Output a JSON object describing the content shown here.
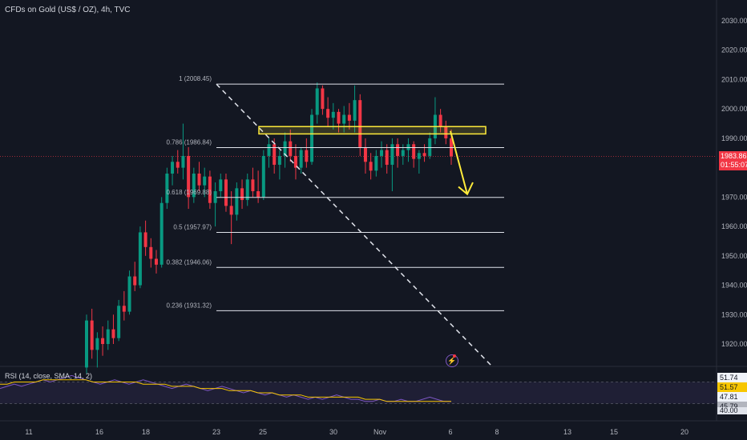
{
  "symbol_title": "CFDs on Gold (US$ / OZ), 4h, TVC",
  "rsi_title": "RSI (14, close, SMA, 14, 2)",
  "current_price": "1983.86",
  "countdown": "01:55:07",
  "rsi_values": [
    "51.74",
    "51.57",
    "47.81",
    "45.79",
    "40.00"
  ],
  "icons": {
    "alert": "lightning-icon"
  },
  "colors": {
    "up": "#089981",
    "down": "#f23645",
    "highlight": "#ffeb3b",
    "rsi_line": "#7e57c2",
    "rsi_ma": "#f7c600"
  },
  "chart_data": [
    {
      "type": "candlestick",
      "y_axis": {
        "min": 1912,
        "max": 2034,
        "ticks": [
          1920,
          1930,
          1940,
          1950,
          1960,
          1970,
          1980,
          1990,
          2000,
          2010,
          2020,
          2030
        ],
        "tick_labels": [
          "1920.00",
          "1930.00",
          "1940.00",
          "1950.00",
          "1960.00",
          "1970.00",
          "1980.00",
          "1990.00",
          "2000.00",
          "2010.00",
          "2020.00",
          "2030.00"
        ]
      },
      "x_axis": {
        "labels": [
          "11",
          "16",
          "18",
          "23",
          "25",
          "30",
          "Nov",
          "6",
          "8",
          "13",
          "15",
          "20"
        ]
      },
      "fib_levels": [
        {
          "label": "1 (2008.45)",
          "value": 2008.45
        },
        {
          "label": "0.786 (1986.84)",
          "value": 1986.84
        },
        {
          "label": "0.618 (1969.88)",
          "value": 1969.88
        },
        {
          "label": "0.5 (1957.97)",
          "value": 1957.97
        },
        {
          "label": "0.382 (1946.06)",
          "value": 1946.06
        },
        {
          "label": "0.236 (1931.32)",
          "value": 1931.32
        }
      ],
      "resistance_zone": {
        "low": 1991.5,
        "high": 1994
      },
      "trendline": "dashed diagonal from 2008 down-right",
      "projection": "yellow arrow pointing down toward 1970",
      "candles": [
        [
          1912,
          1930,
          1910,
          1928
        ],
        [
          1928,
          1932,
          1915,
          1918
        ],
        [
          1918,
          1924,
          1912,
          1922
        ],
        [
          1922,
          1926,
          1916,
          1920
        ],
        [
          1920,
          1928,
          1918,
          1925
        ],
        [
          1925,
          1930,
          1920,
          1922
        ],
        [
          1922,
          1935,
          1921,
          1933
        ],
        [
          1933,
          1938,
          1928,
          1931
        ],
        [
          1931,
          1945,
          1930,
          1943
        ],
        [
          1943,
          1948,
          1938,
          1940
        ],
        [
          1940,
          1960,
          1939,
          1958
        ],
        [
          1958,
          1962,
          1950,
          1953
        ],
        [
          1953,
          1956,
          1946,
          1949
        ],
        [
          1949,
          1952,
          1944,
          1947
        ],
        [
          1947,
          1970,
          1946,
          1968
        ],
        [
          1968,
          1980,
          1966,
          1978
        ],
        [
          1978,
          1984,
          1974,
          1982
        ],
        [
          1982,
          1986,
          1978,
          1980
        ],
        [
          1980,
          1995,
          1976,
          1984
        ],
        [
          1984,
          1987,
          1966,
          1970
        ],
        [
          1970,
          1980,
          1968,
          1978
        ],
        [
          1978,
          1982,
          1972,
          1974
        ],
        [
          1974,
          1980,
          1970,
          1977
        ],
        [
          1977,
          1979,
          1966,
          1968
        ],
        [
          1968,
          1975,
          1960,
          1972
        ],
        [
          1972,
          1978,
          1970,
          1976
        ],
        [
          1976,
          1978,
          1965,
          1967
        ],
        [
          1967,
          1972,
          1954,
          1964
        ],
        [
          1964,
          1975,
          1962,
          1973
        ],
        [
          1973,
          1976,
          1966,
          1969
        ],
        [
          1969,
          1978,
          1967,
          1976
        ],
        [
          1976,
          1980,
          1970,
          1972
        ],
        [
          1972,
          1979,
          1968,
          1970
        ],
        [
          1970,
          1986,
          1969,
          1984
        ],
        [
          1984,
          1990,
          1980,
          1988
        ],
        [
          1988,
          1990,
          1978,
          1981
        ],
        [
          1981,
          1986,
          1976,
          1984
        ],
        [
          1984,
          1992,
          1980,
          1989
        ],
        [
          1989,
          1993,
          1982,
          1984
        ],
        [
          1984,
          1988,
          1976,
          1980
        ],
        [
          1980,
          1987,
          1978,
          1986
        ],
        [
          1986,
          1990,
          1980,
          1982
        ],
        [
          1982,
          2000,
          1981,
          1998
        ],
        [
          1998,
          2009,
          1995,
          2007
        ],
        [
          2007,
          2008,
          1998,
          2000
        ],
        [
          2000,
          2004,
          1994,
          1997
        ],
        [
          1997,
          2002,
          1993,
          1999
        ],
        [
          1999,
          2000,
          1992,
          1995
        ],
        [
          1995,
          2001,
          1992,
          1998
        ],
        [
          1998,
          2002,
          1993,
          1996
        ],
        [
          1996,
          2008,
          1992,
          2003
        ],
        [
          2003,
          2005,
          1984,
          1987
        ],
        [
          1987,
          1990,
          1978,
          1982
        ],
        [
          1982,
          1985,
          1976,
          1979
        ],
        [
          1979,
          1986,
          1977,
          1984
        ],
        [
          1984,
          1989,
          1980,
          1986
        ],
        [
          1986,
          1988,
          1978,
          1981
        ],
        [
          1981,
          1990,
          1972,
          1988
        ],
        [
          1988,
          1990,
          1980,
          1984
        ],
        [
          1984,
          1988,
          1981,
          1986
        ],
        [
          1986,
          1990,
          1982,
          1988
        ],
        [
          1988,
          1989,
          1980,
          1983
        ],
        [
          1983,
          1986,
          1978,
          1985
        ],
        [
          1985,
          1988,
          1982,
          1984
        ],
        [
          1984,
          1992,
          1983,
          1990
        ],
        [
          1990,
          2004,
          1988,
          1998
        ],
        [
          1998,
          2000,
          1992,
          1994
        ],
        [
          1994,
          1996,
          1988,
          1990
        ],
        [
          1990,
          1993,
          1981,
          1983.86
        ]
      ]
    },
    {
      "type": "line",
      "title": "RSI (14, close, SMA, 14, 2)",
      "y_range": [
        40,
        60
      ],
      "series": [
        {
          "values": [
            52,
            53,
            54,
            53,
            54,
            55,
            56,
            55,
            56,
            57,
            58,
            57,
            56,
            55,
            54,
            55,
            56,
            55,
            54,
            55,
            56,
            55,
            54,
            53,
            52,
            53,
            54,
            53,
            52,
            51,
            52,
            53,
            52,
            51,
            50,
            51,
            50,
            49,
            50,
            49,
            48,
            49,
            48,
            47,
            48,
            47,
            48,
            49,
            48,
            47,
            47,
            46,
            46,
            47,
            46,
            46,
            47,
            46,
            46,
            47,
            48,
            47,
            46,
            46
          ]
        },
        {
          "values": [
            54,
            54,
            55,
            55,
            55,
            55,
            56,
            56,
            56,
            56,
            56,
            56,
            56,
            55,
            55,
            55,
            55,
            55,
            55,
            55,
            54,
            54,
            54,
            54,
            53,
            53,
            53,
            53,
            52,
            52,
            52,
            52,
            51,
            51,
            51,
            51,
            50,
            50,
            50,
            49,
            49,
            49,
            49,
            48,
            48,
            48,
            48,
            48,
            48,
            48,
            48,
            47,
            47,
            47,
            46,
            46,
            46,
            46,
            46,
            46,
            46,
            46,
            46,
            46
          ]
        }
      ]
    }
  ]
}
